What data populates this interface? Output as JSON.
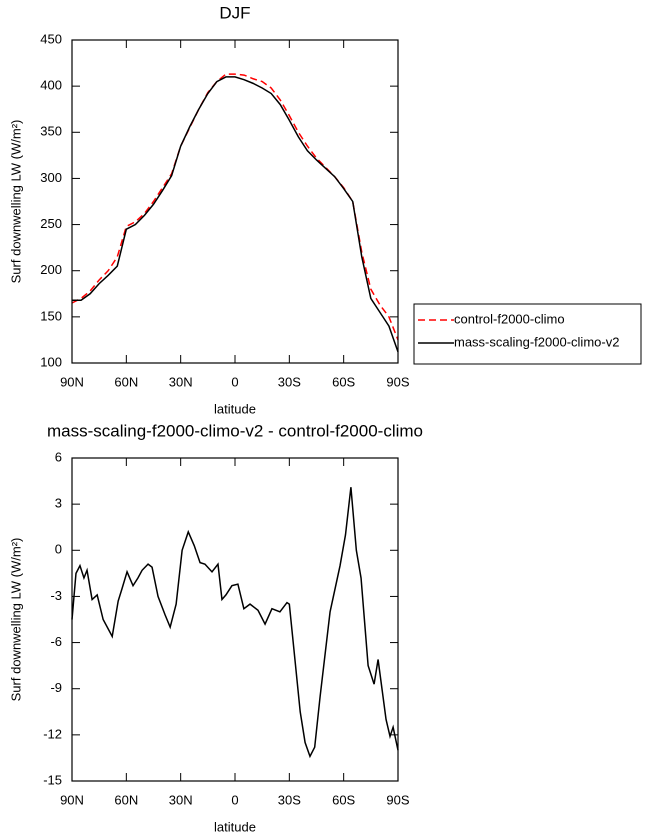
{
  "chart_data": [
    {
      "type": "line",
      "title": "DJF",
      "xlabel": "latitude",
      "ylabel": "Surf downwelling LW (W/m²)",
      "x": [
        90,
        85,
        80,
        75,
        70,
        65,
        60,
        55,
        50,
        45,
        40,
        35,
        30,
        25,
        20,
        15,
        10,
        5,
        0,
        -5,
        -10,
        -15,
        -20,
        -25,
        -30,
        -35,
        -40,
        -45,
        -50,
        -55,
        -60,
        -65,
        -70,
        -75,
        -80,
        -85,
        -90
      ],
      "series": [
        {
          "name": "control-f2000-climo",
          "color": "#ff0000",
          "style": "dashed",
          "values": [
            165,
            170,
            178,
            190,
            200,
            215,
            248,
            253,
            262,
            275,
            290,
            305,
            335,
            355,
            375,
            393,
            405,
            413,
            413,
            412,
            408,
            405,
            398,
            385,
            368,
            350,
            335,
            322,
            312,
            302,
            290,
            275,
            220,
            180,
            163,
            150,
            125
          ]
        },
        {
          "name": "mass-scaling-f2000-climo-v2",
          "color": "#000000",
          "style": "solid",
          "values": [
            168,
            168,
            175,
            186,
            195,
            205,
            245,
            250,
            260,
            272,
            287,
            303,
            335,
            356,
            375,
            392,
            405,
            410,
            410,
            407,
            403,
            398,
            392,
            380,
            363,
            345,
            330,
            320,
            311,
            302,
            289,
            275,
            215,
            170,
            155,
            140,
            112
          ]
        }
      ],
      "xlim": [
        90,
        -90
      ],
      "xticks": [
        {
          "value": 90,
          "label": "90N"
        },
        {
          "value": 60,
          "label": "60N"
        },
        {
          "value": 30,
          "label": "30N"
        },
        0,
        {
          "value": -30,
          "label": "30S"
        },
        {
          "value": -60,
          "label": "60S"
        },
        {
          "value": -90,
          "label": "90S"
        }
      ],
      "ylim": [
        100,
        450
      ],
      "yticks": [
        100,
        150,
        200,
        250,
        300,
        350,
        400,
        450
      ],
      "legend": "right"
    },
    {
      "type": "line",
      "title": "mass-scaling-f2000-climo-v2 - control-f2000-climo",
      "xlabel": "latitude",
      "ylabel": "Surf downwelling LW (W/m²)",
      "x": [
        90,
        87.8,
        85.6,
        83.4,
        81.7,
        78.9,
        76.1,
        72.8,
        67.8,
        64.5,
        62.4,
        59.6,
        56.3,
        53.6,
        51.3,
        48,
        45.8,
        42.5,
        38.6,
        35.8,
        32.5,
        29.2,
        25.8,
        22.5,
        19.3,
        16.6,
        12.7,
        9.4,
        7.2,
        5,
        1.7,
        -1.6,
        -4.9,
        -8.3,
        -12.7,
        -16.6,
        -20.4,
        -24.8,
        -28.7,
        -30,
        -33,
        -36,
        -38.7,
        -41.4,
        -44,
        -47,
        -52.5,
        -58,
        -61,
        -64,
        -67,
        -69.6,
        -73.5,
        -76.8,
        -79,
        -83.4,
        -85.6,
        -87.3,
        -90
      ],
      "values": [
        -4.5,
        -1.5,
        -1,
        -1.8,
        -1.3,
        -3.2,
        -2.9,
        -4.5,
        -5.6,
        -3.3,
        -2.5,
        -1.4,
        -2.3,
        -1.8,
        -1.3,
        -0.9,
        -1.1,
        -3,
        -4.2,
        -5,
        -3.5,
        0,
        1.2,
        0.3,
        -0.8,
        -0.9,
        -1.4,
        -0.9,
        -3.2,
        -2.9,
        -2.3,
        -2.2,
        -3.8,
        -3.5,
        -3.9,
        -4.8,
        -3.8,
        -4,
        -3.4,
        -3.5,
        -7,
        -10.5,
        -12.5,
        -13.4,
        -12.8,
        -9.5,
        -4,
        -1,
        1,
        4.1,
        0,
        -1.8,
        -7.5,
        -8.7,
        -7.1,
        -11,
        -12.1,
        -11.5,
        -13
      ],
      "color": "#000000",
      "xlim": [
        90,
        -90
      ],
      "xticks": [
        {
          "value": 90,
          "label": "90N"
        },
        {
          "value": 60,
          "label": "60N"
        },
        {
          "value": 30,
          "label": "30N"
        },
        0,
        {
          "value": -30,
          "label": "30S"
        },
        {
          "value": -60,
          "label": "60S"
        },
        {
          "value": -90,
          "label": "90S"
        }
      ],
      "ylim": [
        -15,
        6
      ],
      "yticks": [
        -15,
        -12,
        -9,
        -6,
        -3,
        0,
        3,
        6
      ]
    }
  ]
}
